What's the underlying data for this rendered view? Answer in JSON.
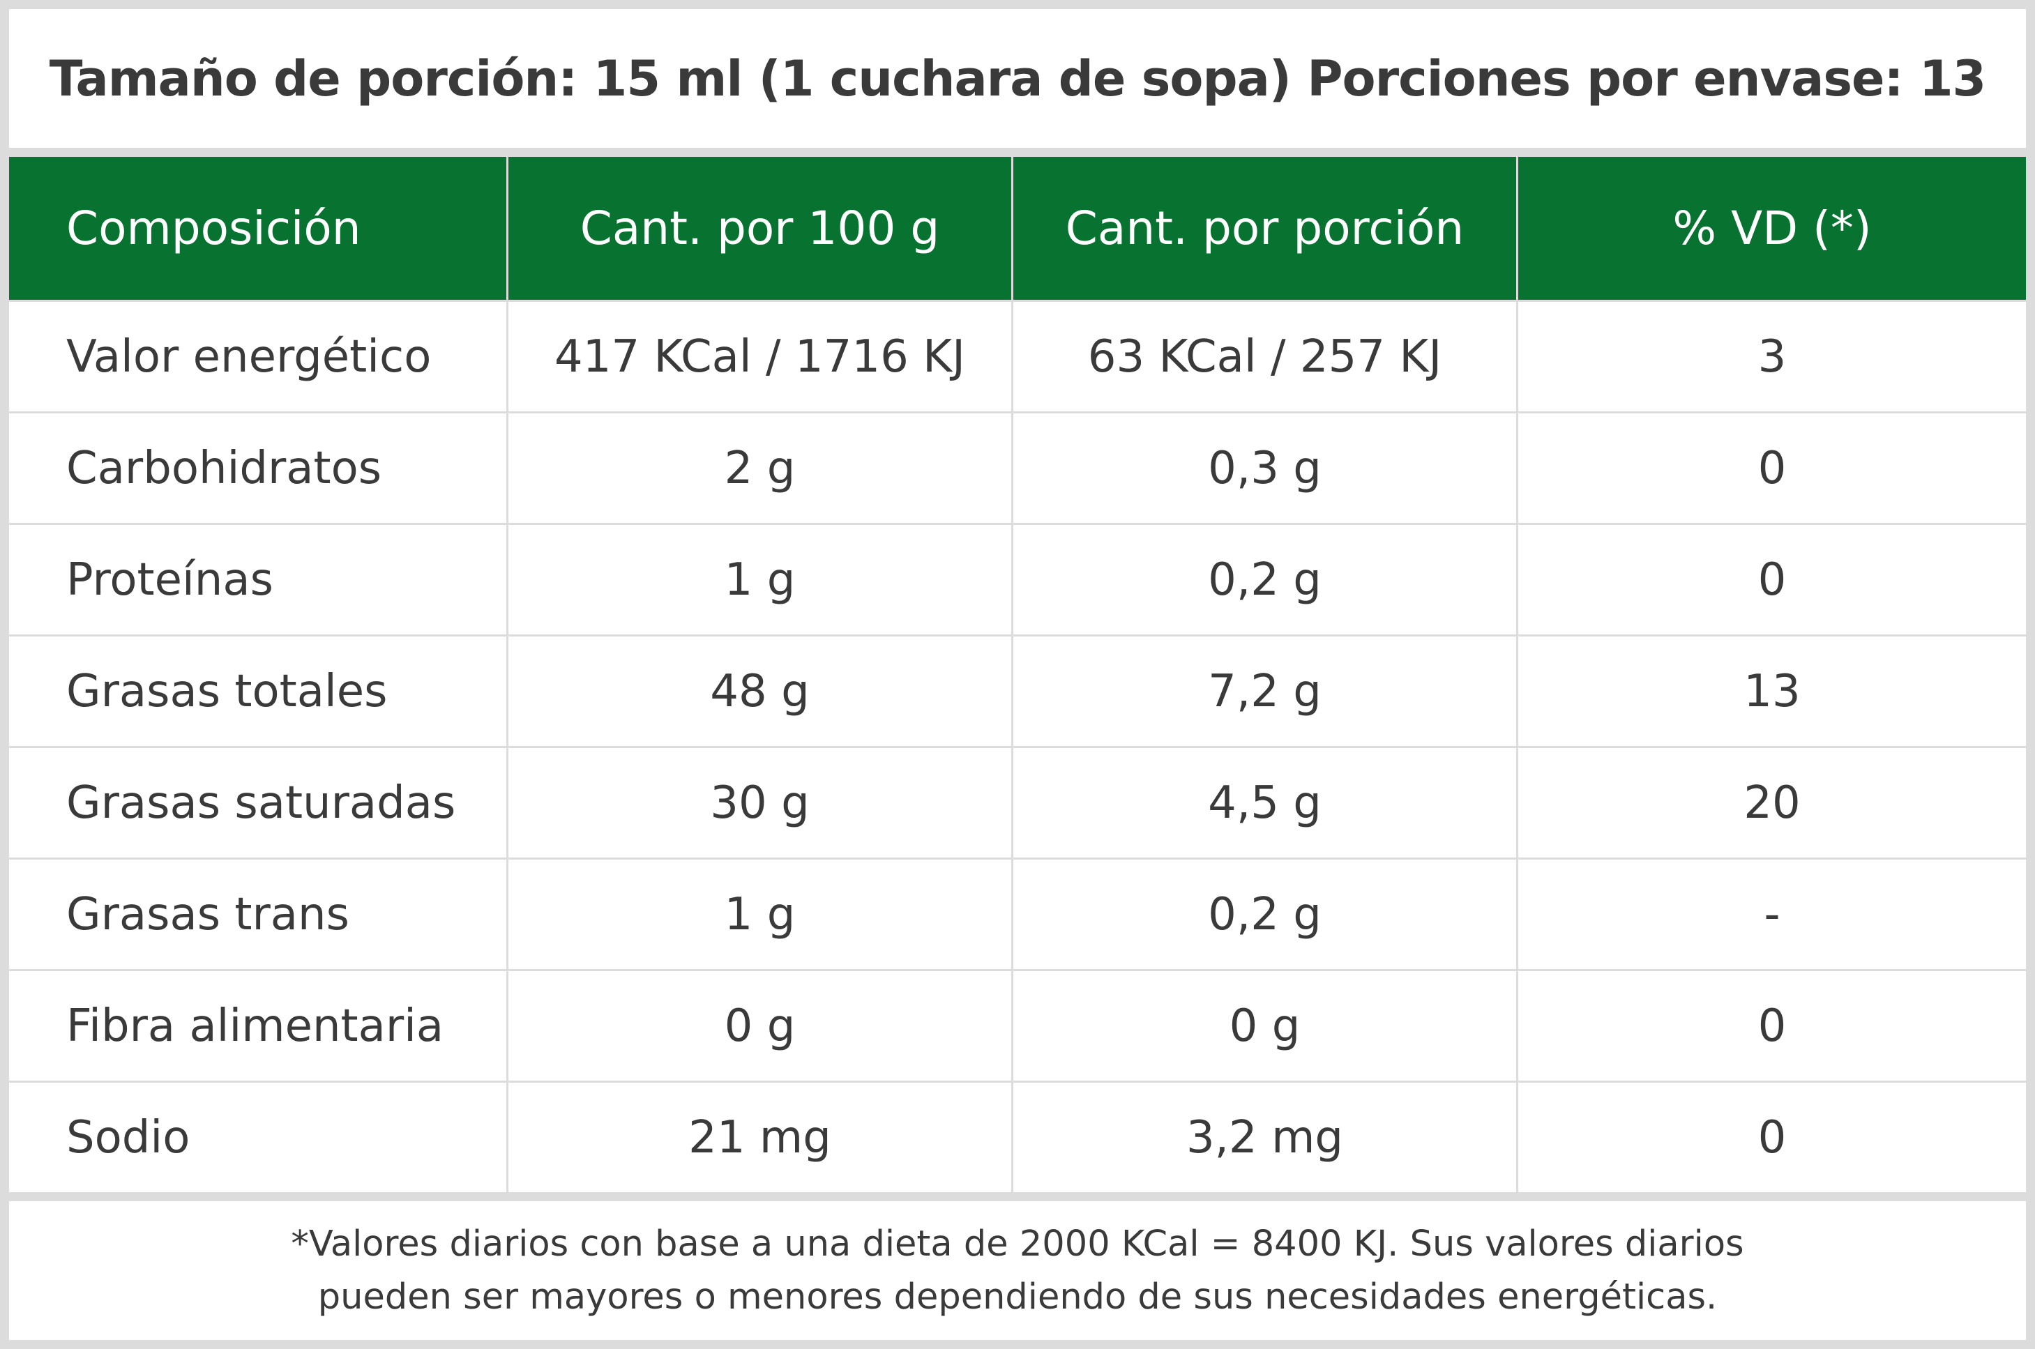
{
  "title": "Tamaño de porción: 15 ml (1 cuchara de sopa) Porciones por envase: 13",
  "colors": {
    "header_bg": "#087331",
    "header_text": "#ffffff",
    "border": "#dcdcdc",
    "text": "#3a3a3a"
  },
  "table": {
    "headers": [
      "Composición",
      "Cant. por 100 g",
      "Cant. por porción",
      "% VD (*)"
    ],
    "rows": [
      [
        "Valor energético",
        "417 KCal / 1716 KJ",
        "63 KCal / 257 KJ",
        "3"
      ],
      [
        "Carbohidratos",
        "2 g",
        "0,3 g",
        "0"
      ],
      [
        "Proteínas",
        "1 g",
        "0,2 g",
        "0"
      ],
      [
        "Grasas totales",
        "48 g",
        "7,2 g",
        "13"
      ],
      [
        "Grasas saturadas",
        "30 g",
        "4,5 g",
        "20"
      ],
      [
        "Grasas trans",
        "1 g",
        "0,2 g",
        "-"
      ],
      [
        "Fibra alimentaria",
        "0 g",
        "0 g",
        "0"
      ],
      [
        "Sodio",
        "21 mg",
        "3,2 mg",
        "0"
      ]
    ]
  },
  "footnote": {
    "line1": "*Valores diarios con base a una dieta de 2000 KCal = 8400 KJ. Sus valores diarios",
    "line2": "pueden ser mayores o menores dependiendo de sus necesidades energéticas."
  }
}
